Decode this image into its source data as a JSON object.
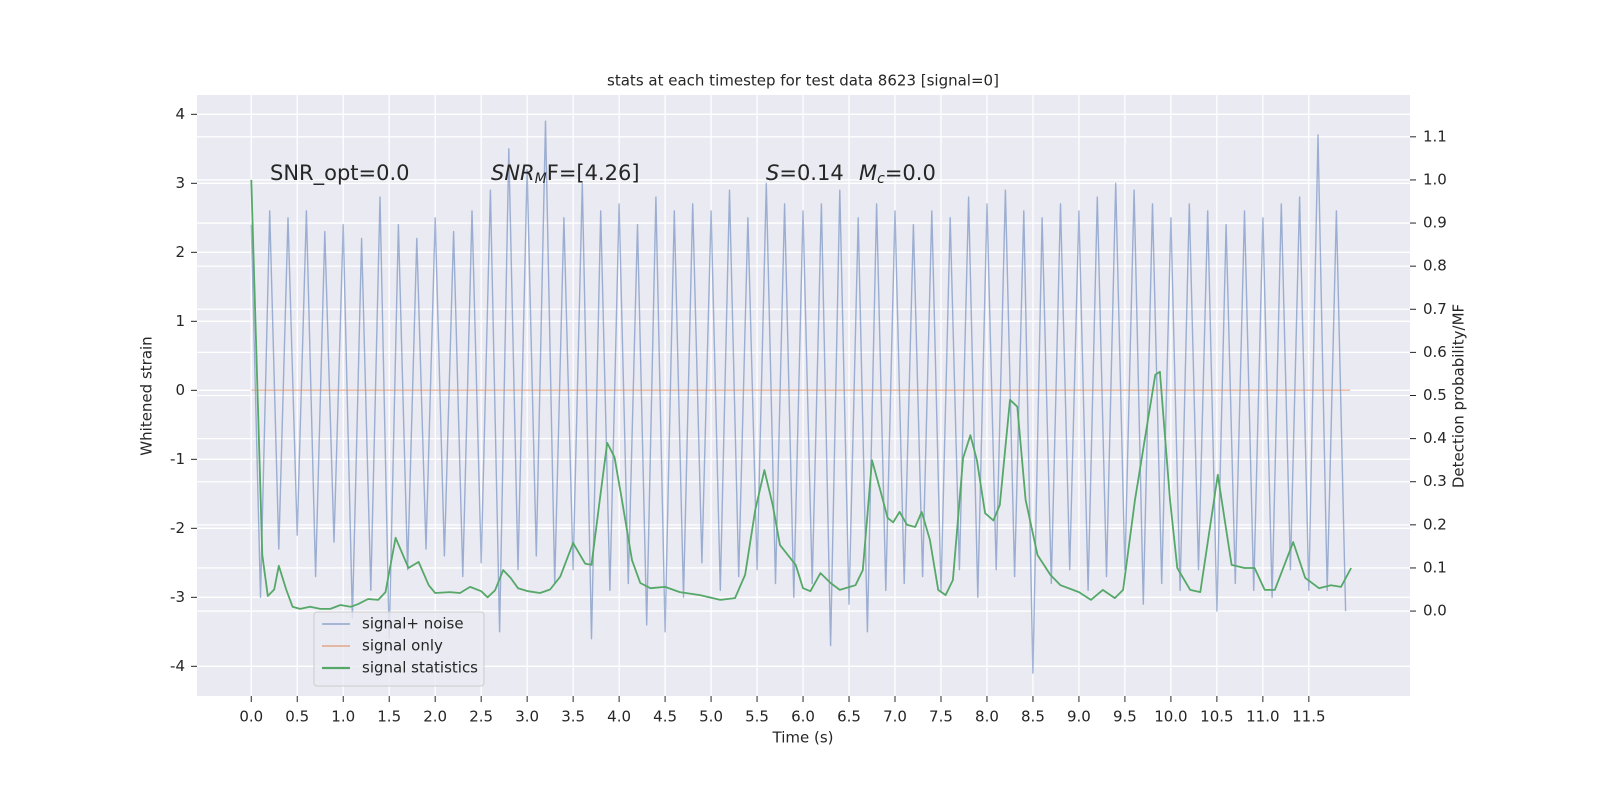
{
  "chart_data": {
    "type": "line",
    "title": "stats at each timestep for test data 8623 [signal=0]",
    "xlabel": "Time (s)",
    "ylabel": "Whitened strain",
    "y2label": "Detection probability/MF",
    "annotations": {
      "snr_opt": "SNR_opt=0.0",
      "snr_mf": {
        "main": "SNR",
        "sub": "M",
        "rest": "F=[4.26]"
      },
      "s": {
        "main": "S",
        "rest": "=0.14"
      },
      "mc": {
        "main": "M",
        "sub": "c",
        "rest": "=0.0"
      }
    },
    "xlim": [
      -0.59,
      12.6
    ],
    "ylim": [
      -4.43,
      4.28
    ],
    "y2lim": [
      -0.197,
      1.197
    ],
    "xticks": [
      {
        "value": 0,
        "label": "0.0"
      },
      0.5,
      {
        "value": 1,
        "label": "1.0"
      },
      1.5,
      {
        "value": 2,
        "label": "2.0"
      },
      2.5,
      {
        "value": 3,
        "label": "3.0"
      },
      3.5,
      {
        "value": 4,
        "label": "4.0"
      },
      4.5,
      {
        "value": 5,
        "label": "5.0"
      },
      5.5,
      {
        "value": 6,
        "label": "6.0"
      },
      6.5,
      {
        "value": 7,
        "label": "7.0"
      },
      7.5,
      {
        "value": 8,
        "label": "8.0"
      },
      8.5,
      {
        "value": 9,
        "label": "9.0"
      },
      9.5,
      {
        "value": 10,
        "label": "10.0"
      },
      10.5,
      {
        "value": 11,
        "label": "11.0"
      },
      11.5
    ],
    "yticks": [
      -4,
      -3,
      -2,
      -1,
      0,
      1,
      2,
      3,
      4
    ],
    "y2ticks": [
      {
        "value": 0,
        "label": "0.0"
      },
      0.1,
      0.2,
      0.3,
      0.4,
      0.5,
      0.6,
      0.7,
      0.8,
      0.9,
      {
        "value": 1,
        "label": "1.0"
      },
      1.1
    ],
    "grid": true,
    "legend": "lower left",
    "series": [
      {
        "name": "signal+ noise",
        "color": "#4c72b0",
        "x": [
          0.0,
          0.1,
          0.2,
          0.3,
          0.4,
          0.5,
          0.6,
          0.7,
          0.8,
          0.9,
          1.0,
          1.1,
          1.2,
          1.3,
          1.4,
          1.5,
          1.6,
          1.7,
          1.8,
          1.9,
          2.0,
          2.1,
          2.2,
          2.3,
          2.4,
          2.5,
          2.6,
          2.7,
          2.8,
          2.9,
          3.0,
          3.1,
          3.2,
          3.3,
          3.4,
          3.5,
          3.6,
          3.7,
          3.8,
          3.9,
          4.0,
          4.1,
          4.2,
          4.3,
          4.4,
          4.5,
          4.6,
          4.7,
          4.8,
          4.9,
          5.0,
          5.1,
          5.2,
          5.3,
          5.4,
          5.5,
          5.6,
          5.7,
          5.8,
          5.9,
          6.0,
          6.1,
          6.2,
          6.3,
          6.4,
          6.5,
          6.6,
          6.7,
          6.8,
          6.9,
          7.0,
          7.1,
          7.2,
          7.3,
          7.4,
          7.5,
          7.6,
          7.7,
          7.8,
          7.9,
          8.0,
          8.1,
          8.2,
          8.3,
          8.4,
          8.5,
          8.6,
          8.7,
          8.8,
          8.9,
          9.0,
          9.1,
          9.2,
          9.3,
          9.4,
          9.5,
          9.6,
          9.7,
          9.8,
          9.9,
          10.0,
          10.1,
          10.2,
          10.3,
          10.4,
          10.5,
          10.6,
          10.7,
          10.8,
          10.9,
          11.0,
          11.1,
          11.2,
          11.3,
          11.4,
          11.5,
          11.6,
          11.7,
          11.8,
          11.9
        ],
        "values": [
          2.4,
          -3.0,
          2.6,
          -2.3,
          2.5,
          -2.1,
          2.6,
          -2.7,
          2.3,
          -2.2,
          2.4,
          -3.3,
          2.2,
          -2.9,
          2.8,
          -3.6,
          2.4,
          -2.6,
          2.2,
          -2.3,
          2.5,
          -2.4,
          2.3,
          -2.7,
          2.6,
          -2.5,
          2.9,
          -3.5,
          3.5,
          -2.6,
          3.2,
          -2.4,
          3.9,
          -2.8,
          2.5,
          -2.6,
          3.0,
          -3.6,
          2.6,
          -2.9,
          2.7,
          -2.8,
          2.4,
          -3.4,
          2.8,
          -3.5,
          2.6,
          -3.0,
          2.7,
          -2.5,
          2.6,
          -2.9,
          2.9,
          -2.7,
          2.5,
          -2.6,
          3.0,
          -2.8,
          2.7,
          -3.0,
          2.6,
          -2.8,
          2.7,
          -3.7,
          2.9,
          -3.1,
          2.5,
          -3.5,
          2.7,
          -2.9,
          2.6,
          -2.8,
          2.4,
          -2.7,
          2.6,
          -2.9,
          2.5,
          -2.6,
          2.8,
          -3.0,
          2.7,
          -2.6,
          2.9,
          -2.7,
          2.6,
          -4.1,
          2.5,
          -2.8,
          2.7,
          -2.6,
          2.6,
          -2.9,
          2.8,
          -2.7,
          3.0,
          -2.6,
          2.9,
          -3.1,
          2.7,
          -2.8,
          2.5,
          -2.9,
          2.7,
          -2.6,
          2.6,
          -3.2,
          2.4,
          -2.8,
          2.6,
          -2.9,
          2.5,
          -3.0,
          2.7,
          -2.6,
          2.8,
          -2.9,
          3.7,
          -2.9,
          2.6,
          -3.2
        ]
      },
      {
        "name": "signal only",
        "color": "#dd8452",
        "x": [
          0.0,
          11.95
        ],
        "values": [
          0,
          0
        ]
      },
      {
        "name": "signal statistics",
        "color": "#55a868",
        "axis": "y2",
        "x": [
          0,
          0.12,
          0.18,
          0.25,
          0.3,
          0.38,
          0.45,
          0.53,
          0.64,
          0.75,
          0.86,
          0.97,
          1.08,
          1.16,
          1.27,
          1.38,
          1.46,
          1.57,
          1.71,
          1.82,
          1.93,
          2.0,
          2.16,
          2.27,
          2.38,
          2.5,
          2.57,
          2.65,
          2.74,
          2.82,
          2.9,
          3.01,
          3.14,
          3.25,
          3.36,
          3.5,
          3.63,
          3.7,
          3.79,
          3.87,
          3.95,
          4.03,
          4.14,
          4.23,
          4.34,
          4.5,
          4.66,
          4.88,
          5.1,
          5.26,
          5.37,
          5.48,
          5.58,
          5.67,
          5.75,
          5.92,
          6.0,
          6.08,
          6.19,
          6.3,
          6.4,
          6.57,
          6.65,
          6.75,
          6.84,
          6.92,
          6.98,
          7.05,
          7.13,
          7.22,
          7.29,
          7.38,
          7.47,
          7.55,
          7.63,
          7.74,
          7.82,
          7.89,
          7.98,
          8.07,
          8.14,
          8.25,
          8.33,
          8.42,
          8.55,
          8.69,
          8.8,
          9.0,
          9.13,
          9.26,
          9.39,
          9.48,
          9.61,
          9.75,
          9.83,
          9.88,
          9.99,
          10.07,
          10.21,
          10.32,
          10.51,
          10.66,
          10.8,
          10.91,
          11.02,
          11.13,
          11.33,
          11.46,
          11.61,
          11.74,
          11.85,
          11.96
        ],
        "values": [
          1.0,
          0.13,
          0.035,
          0.05,
          0.105,
          0.05,
          0.01,
          0.005,
          0.01,
          0.005,
          0.005,
          0.014,
          0.01,
          0.016,
          0.028,
          0.026,
          0.044,
          0.17,
          0.1,
          0.114,
          0.06,
          0.042,
          0.044,
          0.042,
          0.056,
          0.046,
          0.032,
          0.048,
          0.095,
          0.077,
          0.053,
          0.046,
          0.042,
          0.05,
          0.08,
          0.158,
          0.11,
          0.107,
          0.258,
          0.39,
          0.357,
          0.258,
          0.118,
          0.065,
          0.053,
          0.056,
          0.044,
          0.037,
          0.026,
          0.03,
          0.084,
          0.234,
          0.327,
          0.246,
          0.153,
          0.107,
          0.053,
          0.046,
          0.088,
          0.065,
          0.049,
          0.06,
          0.095,
          0.35,
          0.28,
          0.216,
          0.206,
          0.23,
          0.2,
          0.195,
          0.23,
          0.165,
          0.049,
          0.037,
          0.072,
          0.355,
          0.408,
          0.35,
          0.227,
          0.21,
          0.246,
          0.49,
          0.474,
          0.258,
          0.13,
          0.084,
          0.06,
          0.044,
          0.026,
          0.049,
          0.03,
          0.049,
          0.258,
          0.443,
          0.548,
          0.555,
          0.258,
          0.1,
          0.049,
          0.044,
          0.316,
          0.107,
          0.1,
          0.1,
          0.049,
          0.049,
          0.16,
          0.077,
          0.053,
          0.06,
          0.056,
          0.1
        ]
      }
    ]
  }
}
